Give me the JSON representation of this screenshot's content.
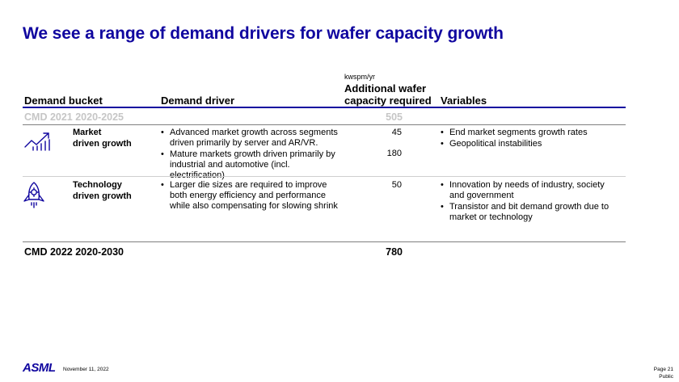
{
  "title": "We see a range of demand drivers for wafer capacity growth",
  "headers": {
    "bucket": "Demand bucket",
    "driver": "Demand driver",
    "unit": "kwspm/yr",
    "capacity_line1": "Additional wafer",
    "capacity_line2": "capacity required",
    "variables": "Variables"
  },
  "cmd2021": {
    "label": "CMD 2021 2020-2025",
    "value": "505"
  },
  "rows": [
    {
      "bucket_line1": "Market",
      "bucket_line2": "driven growth",
      "icon": "market-growth-chart-icon",
      "drivers": [
        "Advanced market growth across segments driven primarily by server and AR/VR.",
        "Mature markets growth driven primarily by industrial and automotive (incl. electrification)"
      ],
      "values": [
        "45",
        "180"
      ],
      "variables": [
        "End market segments growth rates",
        "Geopolitical instabilities"
      ]
    },
    {
      "bucket_line1": "Technology",
      "bucket_line2": "driven growth",
      "icon": "rocket-gear-icon",
      "drivers": [
        "Larger die sizes are required to improve both energy efficiency and performance while also compensating for slowing shrink"
      ],
      "values": [
        "50"
      ],
      "variables": [
        "Innovation by needs of industry, society and government",
        "Transistor and bit demand growth due to market or technology"
      ]
    }
  ],
  "cmd2022": {
    "label": "CMD 2022 2020-2030",
    "value": "780"
  },
  "footer": {
    "logo": "ASML",
    "date": "November 11, 2022",
    "page": "Page 21",
    "classification": "Public"
  },
  "colors": {
    "brand": "#10069f",
    "muted": "#c6c6c6"
  }
}
